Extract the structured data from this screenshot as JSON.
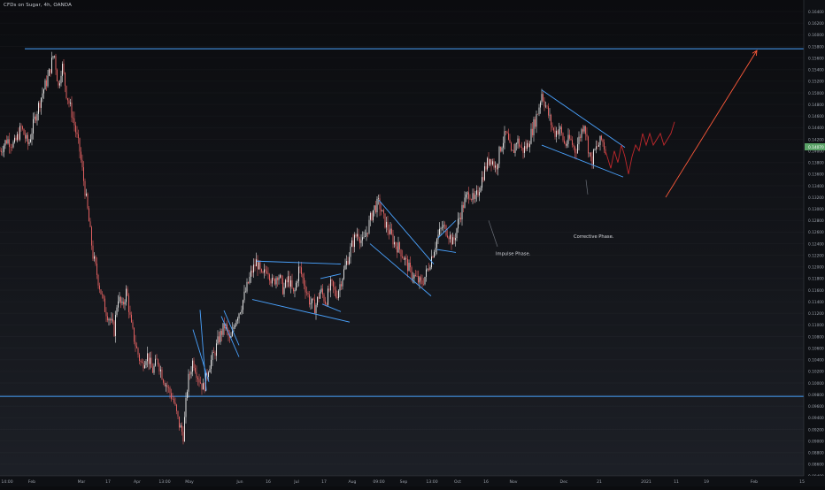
{
  "chart_data": {
    "type": "candlestick",
    "title": "CFDs on Sugar, 4h, OANDA",
    "ylim": [
      0.084,
      0.166
    ],
    "y_ticks": [
      0.084,
      0.086,
      0.088,
      0.09,
      0.092,
      0.094,
      0.096,
      0.098,
      0.1,
      0.102,
      0.104,
      0.106,
      0.108,
      0.11,
      0.112,
      0.114,
      0.116,
      0.118,
      0.12,
      0.122,
      0.124,
      0.126,
      0.128,
      0.13,
      0.132,
      0.134,
      0.136,
      0.138,
      0.14,
      0.142,
      0.144,
      0.146,
      0.148,
      0.15,
      0.152,
      0.154,
      0.156,
      0.158,
      0.16,
      0.162,
      0.164
    ],
    "x_ticks": [
      "14:00",
      "Feb",
      "Mar",
      "17",
      "Apr",
      "13:00",
      "May",
      "Jun",
      "16",
      "Jul",
      "17",
      "Aug",
      "09:00",
      "Sep",
      "13:00",
      "Oct",
      "16",
      "Nov",
      "Dec",
      "21",
      "2021",
      "11",
      "19",
      "Feb",
      "15"
    ],
    "current_price_label": "0.14070",
    "current_price": 0.1407,
    "price_path": [
      [
        0,
        0.14
      ],
      [
        8,
        0.142
      ],
      [
        16,
        0.141
      ],
      [
        24,
        0.144
      ],
      [
        32,
        0.141
      ],
      [
        40,
        0.146
      ],
      [
        48,
        0.15
      ],
      [
        55,
        0.153
      ],
      [
        61,
        0.157
      ],
      [
        66,
        0.151
      ],
      [
        70,
        0.155
      ],
      [
        75,
        0.15
      ],
      [
        82,
        0.146
      ],
      [
        90,
        0.14
      ],
      [
        98,
        0.131
      ],
      [
        105,
        0.122
      ],
      [
        112,
        0.117
      ],
      [
        118,
        0.113
      ],
      [
        124,
        0.111
      ],
      [
        129,
        0.109
      ],
      [
        133,
        0.115
      ],
      [
        138,
        0.113
      ],
      [
        143,
        0.116
      ],
      [
        148,
        0.11
      ],
      [
        154,
        0.106
      ],
      [
        160,
        0.103
      ],
      [
        166,
        0.105
      ],
      [
        172,
        0.102
      ],
      [
        178,
        0.104
      ],
      [
        184,
        0.101
      ],
      [
        190,
        0.099
      ],
      [
        196,
        0.097
      ],
      [
        202,
        0.093
      ],
      [
        207,
        0.091
      ],
      [
        212,
        0.1
      ],
      [
        218,
        0.104
      ],
      [
        224,
        0.101
      ],
      [
        230,
        0.099
      ],
      [
        236,
        0.103
      ],
      [
        242,
        0.105
      ],
      [
        248,
        0.108
      ],
      [
        254,
        0.11
      ],
      [
        260,
        0.107
      ],
      [
        266,
        0.111
      ],
      [
        272,
        0.113
      ],
      [
        278,
        0.116
      ],
      [
        284,
        0.119
      ],
      [
        290,
        0.121
      ],
      [
        296,
        0.118
      ],
      [
        302,
        0.12
      ],
      [
        308,
        0.117
      ],
      [
        314,
        0.119
      ],
      [
        320,
        0.116
      ],
      [
        326,
        0.118
      ],
      [
        332,
        0.115
      ],
      [
        338,
        0.12
      ],
      [
        344,
        0.117
      ],
      [
        350,
        0.114
      ],
      [
        356,
        0.113
      ],
      [
        362,
        0.116
      ],
      [
        368,
        0.114
      ],
      [
        374,
        0.117
      ],
      [
        380,
        0.115
      ],
      [
        386,
        0.118
      ],
      [
        392,
        0.121
      ],
      [
        398,
        0.124
      ],
      [
        404,
        0.126
      ],
      [
        410,
        0.124
      ],
      [
        416,
        0.127
      ],
      [
        422,
        0.13
      ],
      [
        428,
        0.131
      ],
      [
        434,
        0.128
      ],
      [
        440,
        0.126
      ],
      [
        446,
        0.124
      ],
      [
        452,
        0.123
      ],
      [
        458,
        0.121
      ],
      [
        464,
        0.119
      ],
      [
        470,
        0.118
      ],
      [
        476,
        0.117
      ],
      [
        482,
        0.119
      ],
      [
        488,
        0.122
      ],
      [
        494,
        0.125
      ],
      [
        500,
        0.127
      ],
      [
        506,
        0.126
      ],
      [
        512,
        0.124
      ],
      [
        518,
        0.128
      ],
      [
        524,
        0.131
      ],
      [
        530,
        0.133
      ],
      [
        536,
        0.131
      ],
      [
        542,
        0.134
      ],
      [
        548,
        0.137
      ],
      [
        554,
        0.139
      ],
      [
        560,
        0.137
      ],
      [
        566,
        0.141
      ],
      [
        572,
        0.143
      ],
      [
        578,
        0.139
      ],
      [
        584,
        0.142
      ],
      [
        590,
        0.14
      ],
      [
        596,
        0.141
      ],
      [
        602,
        0.144
      ],
      [
        608,
        0.147
      ],
      [
        612,
        0.15
      ],
      [
        616,
        0.148
      ],
      [
        620,
        0.146
      ],
      [
        626,
        0.143
      ],
      [
        632,
        0.144
      ],
      [
        638,
        0.141
      ],
      [
        644,
        0.142
      ],
      [
        650,
        0.14
      ],
      [
        656,
        0.143
      ],
      [
        660,
        0.145
      ],
      [
        664,
        0.141
      ],
      [
        668,
        0.138
      ],
      [
        672,
        0.14
      ],
      [
        676,
        0.141
      ],
      [
        680,
        0.142
      ],
      [
        684,
        0.14
      ]
    ],
    "projection_path": [
      [
        684,
        0.14
      ],
      [
        690,
        0.137
      ],
      [
        694,
        0.14
      ],
      [
        698,
        0.138
      ],
      [
        702,
        0.141
      ],
      [
        706,
        0.139
      ],
      [
        710,
        0.136
      ],
      [
        714,
        0.139
      ],
      [
        718,
        0.141
      ],
      [
        722,
        0.14
      ],
      [
        726,
        0.143
      ],
      [
        730,
        0.141
      ],
      [
        734,
        0.143
      ],
      [
        738,
        0.141
      ],
      [
        742,
        0.142
      ],
      [
        746,
        0.143
      ],
      [
        750,
        0.141
      ],
      [
        754,
        0.142
      ],
      [
        758,
        0.143
      ],
      [
        762,
        0.145
      ]
    ],
    "horizontal_lines": [
      0.1576,
      0.0977
    ],
    "channels": [
      {
        "name": "wedge-may",
        "lines": [
          [
            [
              218,
              0.1092
            ],
            [
              236,
              0.1002
            ]
          ],
          [
            [
              226,
              0.1126
            ],
            [
              233,
              0.0987
            ]
          ]
        ]
      },
      {
        "name": "flag-may",
        "lines": [
          [
            [
              250,
              0.1115
            ],
            [
              270,
              0.1045
            ]
          ],
          [
            [
              253,
              0.1125
            ],
            [
              270,
              0.1065
            ]
          ]
        ]
      },
      {
        "name": "flag-jun-jul",
        "lines": [
          [
            [
              290,
              0.121
            ],
            [
              385,
              0.1205
            ]
          ],
          [
            [
              285,
              0.1144
            ],
            [
              395,
              0.1105
            ]
          ]
        ]
      },
      {
        "name": "flag-jul",
        "lines": [
          [
            [
              362,
              0.118
            ],
            [
              385,
              0.1188
            ]
          ],
          [
            [
              364,
              0.1136
            ],
            [
              385,
              0.1123
            ]
          ]
        ]
      },
      {
        "name": "channel-aug-sep",
        "lines": [
          [
            [
              428,
              0.1315
            ],
            [
              490,
              0.1205
            ]
          ],
          [
            [
              418,
              0.124
            ],
            [
              487,
              0.115
            ]
          ]
        ]
      },
      {
        "name": "flag-sep",
        "lines": [
          [
            [
              495,
              0.125
            ],
            [
              515,
              0.128
            ]
          ],
          [
            [
              494,
              0.123
            ],
            [
              515,
              0.1225
            ]
          ]
        ]
      },
      {
        "name": "channel-nov-dec",
        "lines": [
          [
            [
              612,
              0.1505
            ],
            [
              706,
              0.1406
            ]
          ],
          [
            [
              612,
              0.141
            ],
            [
              704,
              0.1355
            ]
          ]
        ]
      }
    ],
    "annotations": [
      {
        "text": "Impulse Phase.",
        "x": 560,
        "y": 0.122,
        "pointer": [
          [
            552,
            0.128
          ],
          [
            562,
            0.1235
          ]
        ]
      },
      {
        "text": "Corrective Phase.",
        "x": 648,
        "y": 0.125,
        "pointer": [
          [
            662,
            0.135
          ],
          [
            664,
            0.1325
          ]
        ]
      }
    ],
    "arrow": {
      "from": [
        752,
        0.132
      ],
      "to": [
        855,
        0.1573
      ]
    },
    "colors": {
      "up_candle": "#e0e0e0",
      "down_candle": "#e06060",
      "horizontal_line": "#4aa3ff",
      "channel_line": "#4aa3ff",
      "projection": "#c0282c",
      "arrow": "#ff5a3a",
      "price_label_bg": "#5aa267",
      "axis_text": "#9aa0aa"
    }
  }
}
